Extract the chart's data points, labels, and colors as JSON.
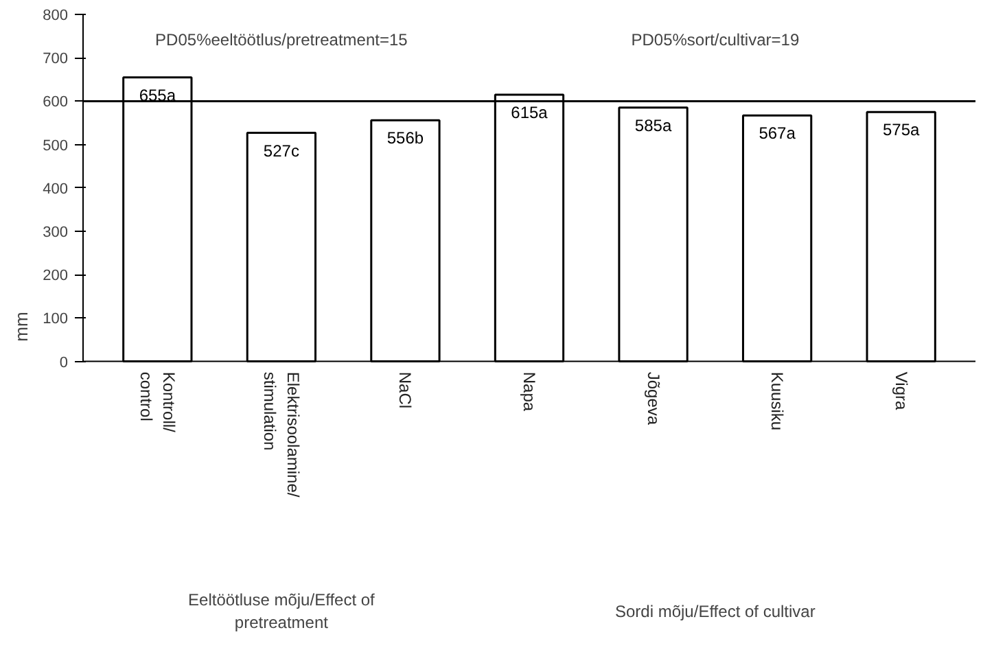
{
  "chart_data": {
    "type": "bar",
    "ylabel": "mm",
    "categories": [
      "Kontroll/\ncontrol",
      "Elektrisoolamine/\nstimulation",
      "NaCl",
      "Napa",
      "Jõgeva",
      "Kuusiku",
      "Vigra"
    ],
    "values": [
      655,
      527,
      556,
      615,
      585,
      567,
      575
    ],
    "value_labels": [
      "655a",
      "527c",
      "556b",
      "615a",
      "585a",
      "567a",
      "575a"
    ],
    "color": "#ffffff",
    "ylim": [
      0,
      800
    ],
    "yticks": [
      0,
      100,
      200,
      300,
      400,
      500,
      600,
      700,
      800
    ],
    "grid": false,
    "ref_lines": [
      {
        "axis": "y",
        "value": 600,
        "color": "#000000"
      }
    ],
    "annotations": [
      "PD05%eeltöötlus/pretreatment=15",
      "PD05%sort/cultivar=19",
      "Eeltöötluse mõju/Effect of\npretreatment",
      "Sordi mõju/Effect of cultivar"
    ]
  }
}
